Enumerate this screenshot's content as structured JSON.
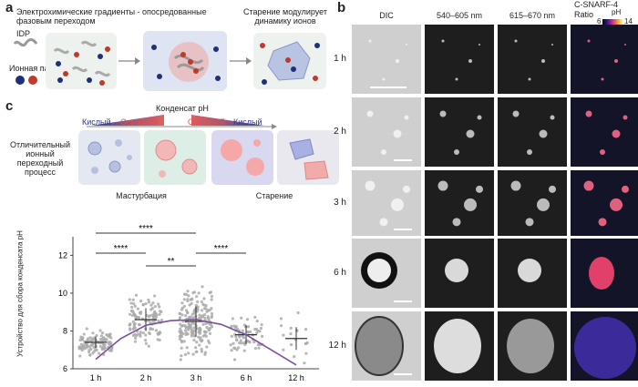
{
  "panel_a": {
    "label": "a",
    "text_left": "Электрохимические градиенты - опосредованные фазовым переходом",
    "text_right": "Старение модулирует динамику ионов",
    "legend_idp": "IDP",
    "legend_ion": "Ионная пара"
  },
  "panel_b": {
    "label": "b",
    "columns": [
      "DIC",
      "540–605 nm",
      "615–670 nm"
    ],
    "ratio_title": "C-SNARF-4",
    "ratio_word": "Ratio",
    "ph_label": "pH",
    "ph_min": "6",
    "ph_max": "14",
    "rows": [
      "1 h",
      "2 h",
      "3 h",
      "6 h",
      "12 h"
    ]
  },
  "panel_c": {
    "label": "c",
    "condensate_ph": "Конденсат pH",
    "acid1": "Кислый",
    "basic1": "Основной",
    "basic2": "Основной",
    "acid2": "Кислый",
    "side_text": "Отличительный ионный переходный процесс",
    "maturation": "Мастурбация",
    "aging": "Старение",
    "colors": {
      "acid": "#2b3a8c",
      "basic": "#d9534f"
    }
  },
  "chart_data": {
    "type": "scatter",
    "ylabel": "Устройство для сбора конденсата pH",
    "xlabel": "",
    "categories": [
      "1 h",
      "2 h",
      "3 h",
      "6 h",
      "12 h"
    ],
    "yticks": [
      6,
      8,
      10,
      12
    ],
    "ylim": [
      6,
      12.5
    ],
    "means": [
      7.4,
      8.6,
      8.5,
      7.8,
      7.6
    ],
    "sd": [
      0.3,
      0.6,
      0.8,
      0.5,
      0.6
    ],
    "counts": [
      110,
      110,
      190,
      70,
      18
    ],
    "fit_curve": [
      [
        0,
        6.5
      ],
      [
        0.5,
        7.6
      ],
      [
        1,
        8.3
      ],
      [
        1.5,
        8.55
      ],
      [
        2,
        8.6
      ],
      [
        2.5,
        8.35
      ],
      [
        3,
        7.8
      ],
      [
        3.5,
        7.0
      ],
      [
        4,
        6.2
      ]
    ],
    "significance": [
      {
        "from": "1 h",
        "to": "3 h",
        "label": "****"
      },
      {
        "from": "1 h",
        "to": "2 h",
        "label": "****"
      },
      {
        "from": "2 h",
        "to": "3 h",
        "label": "**"
      },
      {
        "from": "3 h",
        "to": "6 h",
        "label": "****"
      }
    ],
    "point_color": "#aaaaaa",
    "curve_color": "#7b4fa0"
  }
}
